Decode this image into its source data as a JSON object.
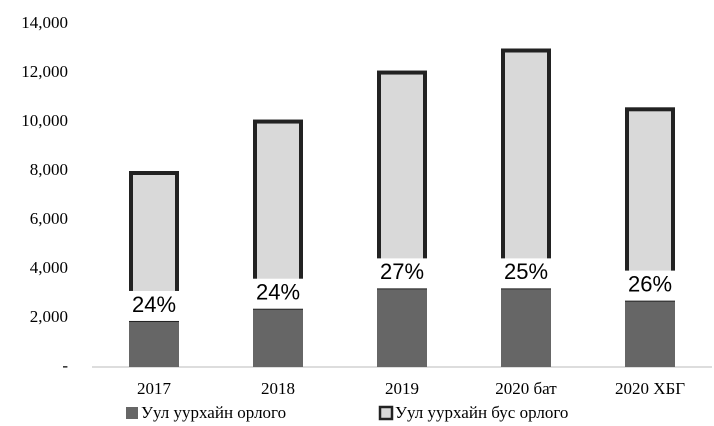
{
  "chart_data": {
    "type": "stacked-bar",
    "categories": [
      "2017",
      "2018",
      "2019",
      "2020 бат",
      "2020 ХБГ"
    ],
    "series": [
      {
        "name": "Уул уурхайн орлого",
        "color": "#666666",
        "values": [
          1920,
          2420,
          3250,
          3250,
          2750
        ]
      },
      {
        "name": "Уул уурхайн бус орлого",
        "color": "#d9d9d9",
        "values": [
          6080,
          7680,
          8850,
          9750,
          7850
        ]
      }
    ],
    "share_labels": [
      "24%",
      "24%",
      "27%",
      "25%",
      "26%"
    ],
    "ylim": [
      0,
      14000
    ],
    "yticks": [
      {
        "value": 0,
        "label": "-"
      },
      {
        "value": 2000,
        "label": "2,000"
      },
      {
        "value": 4000,
        "label": "4,000"
      },
      {
        "value": 6000,
        "label": "6,000"
      },
      {
        "value": 8000,
        "label": "8,000"
      },
      {
        "value": 10000,
        "label": "10,000"
      },
      {
        "value": 12000,
        "label": "12,000"
      },
      {
        "value": 14000,
        "label": "14,000"
      }
    ],
    "legend": "bottom"
  }
}
